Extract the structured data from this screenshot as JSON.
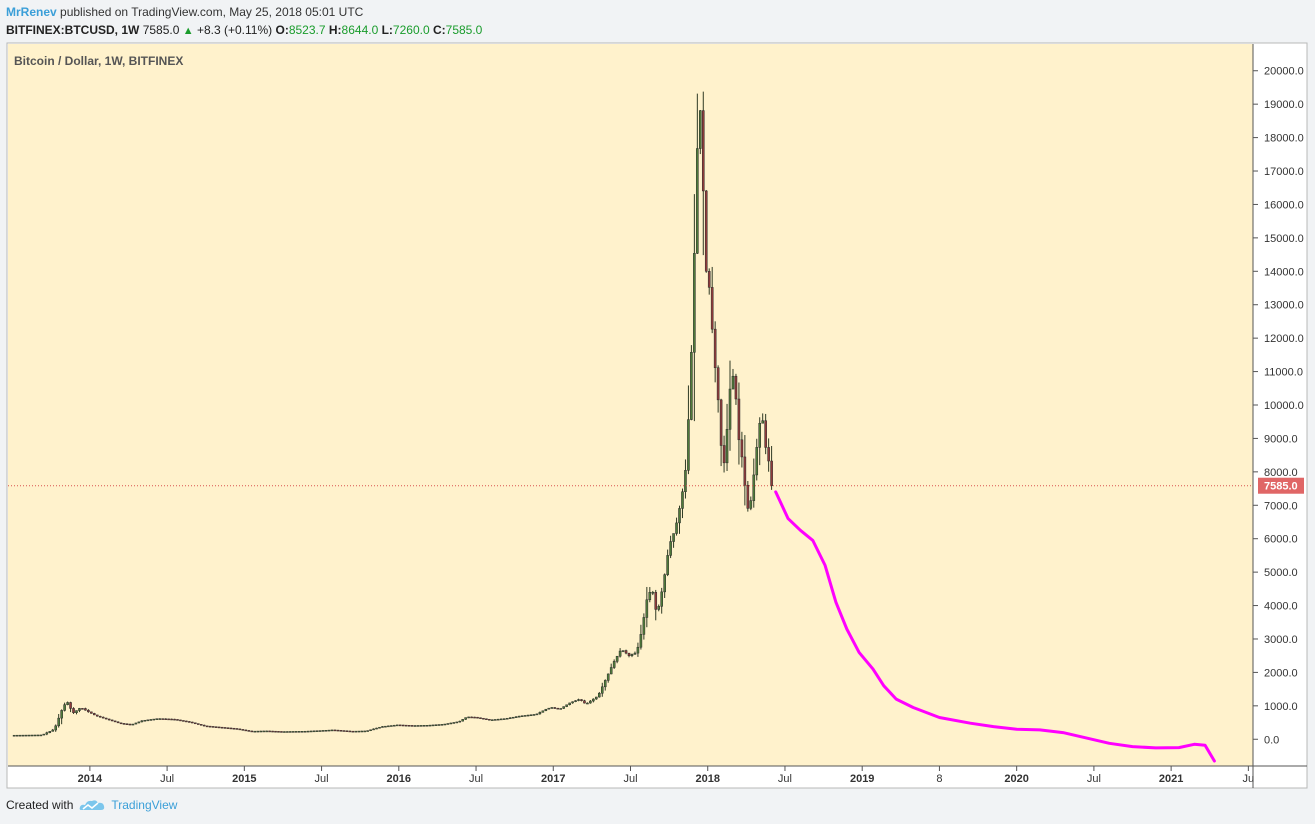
{
  "header": {
    "author": "MrRenev",
    "published_text": "published on TradingView.com, May 25, 2018 05:01 UTC"
  },
  "ohlc_bar": {
    "symbol": "BITFINEX:BTCUSD, 1W",
    "last": "7585.0",
    "change": "+8.3 (+0.11%)",
    "o_label": "O:",
    "o": "8523.7",
    "h_label": "H:",
    "h": "8644.0",
    "l_label": "L:",
    "l": "7260.0",
    "c_label": "C:",
    "c": "7585.0"
  },
  "footer": {
    "created_with": "Created with",
    "brand": "TradingView",
    "logo_icon": "tradingview-cloud-icon"
  },
  "colors": {
    "chart_bg": "#fff2cc",
    "up_candle": "#4f7a3a",
    "down_candle": "#8e3b3b",
    "wick": "#2f3a24",
    "projection": "#ff00ff",
    "price_line": "#d9534f",
    "price_tag_bg": "#e06666"
  },
  "chart_data": {
    "type": "line",
    "title": "Bitcoin / Dollar, 1W, BITFINEX",
    "xlabel": "",
    "ylabel": "",
    "ylim": [
      -800,
      20800
    ],
    "y_ticks": [
      "20000.0",
      "19000.0",
      "18000.0",
      "17000.0",
      "16000.0",
      "15000.0",
      "14000.0",
      "13000.0",
      "12000.0",
      "11000.0",
      "10000.0",
      "9000.0",
      "8000.0",
      "7000.0",
      "6000.0",
      "5000.0",
      "4000.0",
      "3000.0",
      "2000.0",
      "1000.0",
      "0.0"
    ],
    "x_ticks": [
      {
        "label": "2014",
        "t": 2014.0,
        "bold": true
      },
      {
        "label": "Jul",
        "t": 2014.5,
        "bold": false
      },
      {
        "label": "2015",
        "t": 2015.0,
        "bold": true
      },
      {
        "label": "Jul",
        "t": 2015.5,
        "bold": false
      },
      {
        "label": "2016",
        "t": 2016.0,
        "bold": true
      },
      {
        "label": "Jul",
        "t": 2016.5,
        "bold": false
      },
      {
        "label": "2017",
        "t": 2017.0,
        "bold": true
      },
      {
        "label": "Jul",
        "t": 2017.5,
        "bold": false
      },
      {
        "label": "2018",
        "t": 2018.0,
        "bold": true
      },
      {
        "label": "Jul",
        "t": 2018.5,
        "bold": false
      },
      {
        "label": "2019",
        "t": 2019.0,
        "bold": true
      },
      {
        "label": "8",
        "t": 2019.5,
        "bold": false
      },
      {
        "label": "2020",
        "t": 2020.0,
        "bold": true
      },
      {
        "label": "Jul",
        "t": 2020.5,
        "bold": false
      },
      {
        "label": "2021",
        "t": 2021.0,
        "bold": true
      },
      {
        "label": "Ju",
        "t": 2021.5,
        "bold": false
      }
    ],
    "grid": false,
    "price_line": {
      "value": 7585.0,
      "label": "7585.0"
    },
    "series": [
      {
        "kind": "price_path",
        "points": [
          [
            2013.5,
            120
          ],
          [
            2013.7,
            130
          ],
          [
            2013.78,
            300
          ],
          [
            2013.83,
            900
          ],
          [
            2013.86,
            1150
          ],
          [
            2013.9,
            780
          ],
          [
            2013.95,
            950
          ],
          [
            2014.0,
            820
          ],
          [
            2014.05,
            700
          ],
          [
            2014.12,
            600
          ],
          [
            2014.2,
            480
          ],
          [
            2014.28,
            440
          ],
          [
            2014.35,
            560
          ],
          [
            2014.45,
            620
          ],
          [
            2014.55,
            600
          ],
          [
            2014.65,
            520
          ],
          [
            2014.75,
            400
          ],
          [
            2014.85,
            360
          ],
          [
            2014.95,
            320
          ],
          [
            2015.0,
            280
          ],
          [
            2015.05,
            240
          ],
          [
            2015.15,
            250
          ],
          [
            2015.25,
            230
          ],
          [
            2015.4,
            240
          ],
          [
            2015.5,
            260
          ],
          [
            2015.58,
            280
          ],
          [
            2015.7,
            240
          ],
          [
            2015.8,
            250
          ],
          [
            2015.9,
            380
          ],
          [
            2016.0,
            430
          ],
          [
            2016.1,
            410
          ],
          [
            2016.2,
            420
          ],
          [
            2016.3,
            450
          ],
          [
            2016.4,
            530
          ],
          [
            2016.45,
            670
          ],
          [
            2016.5,
            660
          ],
          [
            2016.6,
            580
          ],
          [
            2016.7,
            620
          ],
          [
            2016.8,
            700
          ],
          [
            2016.9,
            750
          ],
          [
            2016.97,
            920
          ],
          [
            2017.0,
            950
          ],
          [
            2017.05,
            900
          ],
          [
            2017.12,
            1100
          ],
          [
            2017.18,
            1200
          ],
          [
            2017.22,
            1050
          ],
          [
            2017.3,
            1300
          ],
          [
            2017.35,
            1800
          ],
          [
            2017.4,
            2300
          ],
          [
            2017.45,
            2700
          ],
          [
            2017.5,
            2500
          ],
          [
            2017.55,
            2600
          ],
          [
            2017.58,
            3200
          ],
          [
            2017.62,
            4300
          ],
          [
            2017.65,
            4500
          ],
          [
            2017.68,
            3700
          ],
          [
            2017.72,
            4600
          ],
          [
            2017.76,
            5800
          ],
          [
            2017.8,
            6300
          ],
          [
            2017.84,
            7200
          ],
          [
            2017.87,
            8200
          ],
          [
            2017.9,
            11000
          ],
          [
            2017.92,
            14000
          ],
          [
            2017.94,
            17500
          ],
          [
            2017.96,
            19000
          ],
          [
            2017.98,
            16500
          ],
          [
            2018.0,
            14000
          ],
          [
            2018.02,
            13500
          ],
          [
            2018.05,
            11500
          ],
          [
            2018.08,
            10000
          ],
          [
            2018.1,
            8500
          ],
          [
            2018.12,
            8200
          ],
          [
            2018.15,
            10400
          ],
          [
            2018.18,
            11000
          ],
          [
            2018.21,
            9000
          ],
          [
            2018.24,
            8200
          ],
          [
            2018.26,
            7000
          ],
          [
            2018.28,
            6800
          ],
          [
            2018.31,
            8000
          ],
          [
            2018.34,
            9300
          ],
          [
            2018.36,
            9800
          ],
          [
            2018.38,
            8800
          ],
          [
            2018.4,
            8500
          ],
          [
            2018.42,
            7585
          ]
        ]
      },
      {
        "kind": "projection",
        "points": [
          [
            2018.44,
            7400
          ],
          [
            2018.52,
            6600
          ],
          [
            2018.6,
            6250
          ],
          [
            2018.68,
            5950
          ],
          [
            2018.76,
            5200
          ],
          [
            2018.83,
            4100
          ],
          [
            2018.9,
            3300
          ],
          [
            2018.98,
            2600
          ],
          [
            2019.07,
            2100
          ],
          [
            2019.14,
            1600
          ],
          [
            2019.22,
            1200
          ],
          [
            2019.33,
            950
          ],
          [
            2019.5,
            650
          ],
          [
            2019.7,
            480
          ],
          [
            2019.85,
            380
          ],
          [
            2020.0,
            300
          ],
          [
            2020.15,
            280
          ],
          [
            2020.3,
            200
          ],
          [
            2020.45,
            40
          ],
          [
            2020.6,
            -120
          ],
          [
            2020.75,
            -220
          ],
          [
            2020.9,
            -260
          ],
          [
            2021.05,
            -250
          ],
          [
            2021.15,
            -150
          ],
          [
            2021.22,
            -180
          ],
          [
            2021.28,
            -650
          ]
        ]
      }
    ]
  }
}
